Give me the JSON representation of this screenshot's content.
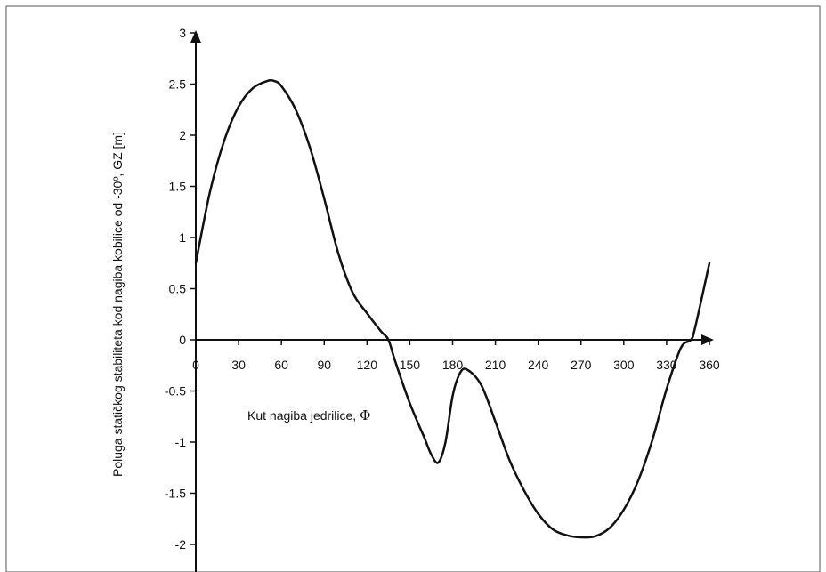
{
  "chart_data": {
    "type": "line",
    "title": "",
    "xlabel": "Kut nagiba jedrilice, ",
    "xlabel_symbol": "Φ",
    "ylabel": "Poluga statičkog stabiliteta kod nagiba kobilice od -30º, GZ [m]",
    "xlim": [
      0,
      360
    ],
    "ylim": [
      -2,
      3
    ],
    "x_ticks": [
      0,
      30,
      60,
      90,
      120,
      150,
      180,
      210,
      240,
      270,
      300,
      330,
      360
    ],
    "y_ticks": [
      3,
      2.5,
      2,
      1.5,
      1,
      0.5,
      0,
      -0.5,
      -1,
      -1.5,
      -2
    ],
    "grid": false,
    "series": [
      {
        "name": "",
        "color": "#111111",
        "x": [
          0,
          10,
          20,
          30,
          40,
          50,
          55,
          60,
          70,
          80,
          90,
          100,
          110,
          120,
          130,
          135,
          140,
          150,
          160,
          165,
          170,
          175,
          180,
          185,
          190,
          200,
          210,
          220,
          230,
          240,
          250,
          260,
          270,
          280,
          290,
          300,
          310,
          320,
          330,
          340,
          347,
          350,
          360
        ],
        "y": [
          0.75,
          1.45,
          1.95,
          2.28,
          2.46,
          2.53,
          2.53,
          2.48,
          2.25,
          1.88,
          1.38,
          0.84,
          0.46,
          0.26,
          0.08,
          0.0,
          -0.22,
          -0.62,
          -0.95,
          -1.12,
          -1.2,
          -1.0,
          -0.55,
          -0.33,
          -0.29,
          -0.44,
          -0.8,
          -1.18,
          -1.47,
          -1.7,
          -1.85,
          -1.91,
          -1.93,
          -1.92,
          -1.84,
          -1.66,
          -1.38,
          -0.98,
          -0.48,
          -0.08,
          0.0,
          0.12,
          0.75
        ]
      }
    ]
  }
}
